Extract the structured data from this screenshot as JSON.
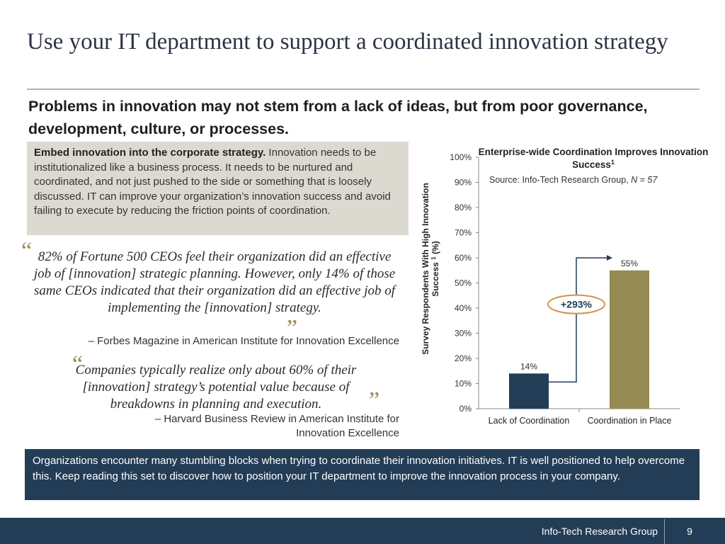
{
  "slide": {
    "title": "Use your IT department to support a coordinated innovation strategy",
    "subtitle": "Problems in innovation may not stem from a lack of ideas, but from poor governance, development, culture, or processes."
  },
  "callout": {
    "bold": "Embed innovation into the corporate strategy.",
    "text": " Innovation needs to be institutionalized like a business process. It needs to be nurtured and coordinated, and not just pushed to the side or something that is loosely discussed. IT can improve your organization’s innovation success and avoid failing to execute by reducing the friction points of coordination."
  },
  "quotes": [
    {
      "text": "82% of Fortune 500 CEOs feel their organization did an effective job of [innovation] strategic planning. However, only 14% of those same CEOs indicated that their organization did an effective job of implementing the [innovation] strategy.",
      "attribution": "– Forbes Magazine in American Institute for Innovation Excellence"
    },
    {
      "text": "Companies typically realize only about 60% of their [innovation] strategy’s potential value because of breakdowns in planning and execution.",
      "attribution": "– Harvard Business Review in American Institute for Innovation Excellence"
    }
  ],
  "chart_data": {
    "type": "bar",
    "title": "Enterprise-wide Coordination Improves Innovation Success",
    "title_superscript": "1",
    "source_prefix": "Source: Info-Tech Research Group, ",
    "source_n": "N = 57",
    "ylabel": "Survey Respondents With High Innovation Success",
    "ylabel_suffix": " (%)",
    "ylabel_superscript": "1",
    "categories": [
      "Lack of Coordination",
      "Coordination in Place"
    ],
    "values": [
      14,
      55
    ],
    "data_labels": [
      "14%",
      "55%"
    ],
    "bar_colors": [
      "#233d57",
      "#948a52"
    ],
    "ylim": [
      0,
      100
    ],
    "yticks": [
      "0%",
      "10%",
      "20%",
      "30%",
      "40%",
      "50%",
      "60%",
      "70%",
      "80%",
      "90%",
      "100%"
    ],
    "grid": false,
    "annotation": "+293%",
    "annotation_color": "#d4944a"
  },
  "bottom_box": {
    "text": "Organizations encounter many stumbling blocks when trying to coordinate their innovation initiatives. IT is well positioned to help overcome this. Keep reading this set to discover how to position your IT department to improve the innovation process in your company."
  },
  "footer": {
    "company": "Info-Tech Research Group",
    "page": "9"
  },
  "colors": {
    "navy": "#233d57",
    "accent": "#948a52",
    "callout_bg": "#dcdad0"
  }
}
